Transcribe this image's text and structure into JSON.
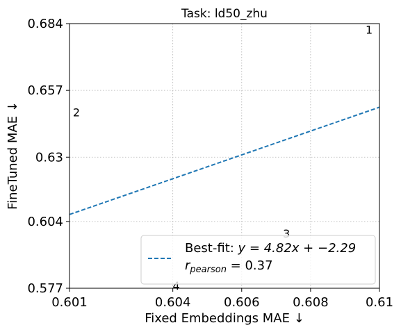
{
  "chart_data": {
    "type": "scatter",
    "title": "Task: ld50_zhu",
    "xlabel": "Fixed Embeddings MAE ↓",
    "ylabel": "FineTuned MAE ↓",
    "xlim": [
      0.601,
      0.61
    ],
    "ylim": [
      0.577,
      0.684
    ],
    "x_ticks": [
      "0.601",
      "0.604",
      "0.606",
      "0.608",
      "0.61"
    ],
    "y_ticks": [
      "0.684",
      "0.657",
      "0.63",
      "0.604",
      "0.577"
    ],
    "grid": true,
    "points": [
      {
        "label": "1",
        "x": 0.6097,
        "y": 0.6815
      },
      {
        "label": "2",
        "x": 0.6012,
        "y": 0.648
      },
      {
        "label": "3",
        "x": 0.6073,
        "y": 0.599
      },
      {
        "label": "4",
        "x": 0.6041,
        "y": 0.578
      }
    ],
    "fit_line": {
      "slope": 4.82,
      "intercept": -2.29,
      "color": "#1f77b4",
      "style": "dashed"
    },
    "legend": {
      "placement": "lower-right",
      "fit_label_prefix": "Best-fit: ",
      "fit_label_math": "y = 4.82x + −2.29",
      "r_label_prefix": "r",
      "r_label_sub": "pearson",
      "r_label_value": " = 0.37"
    }
  }
}
